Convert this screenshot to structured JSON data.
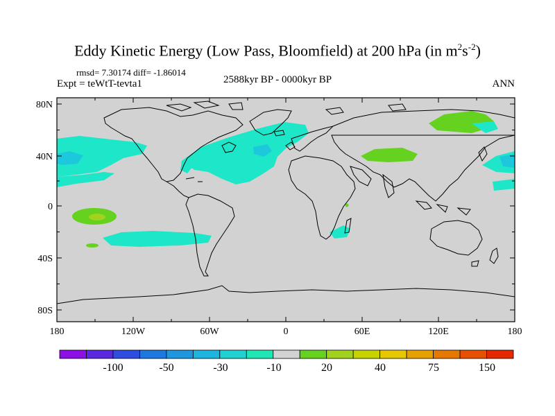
{
  "title": {
    "main": "Eddy Kinetic Energy (Low Pass, Bloomfield) at 200 hPa (in m",
    "exp1": "2",
    "mid": "s",
    "exp2": "-2",
    "end": ")"
  },
  "stats": "rmsd= 7.30174 diff= -1.86014",
  "experiment": "Expt = teWtT-tevta1",
  "period": "2588kyr BP - 0000kyr BP",
  "season": "ANN",
  "lat_ticks": [
    "80N",
    "40N",
    "0",
    "40S",
    "80S"
  ],
  "lon_ticks": [
    "180",
    "120W",
    "60W",
    "0",
    "60E",
    "120E",
    "180"
  ],
  "colorbar": {
    "labels": [
      "-100",
      "-50",
      "-30",
      "-10",
      "20",
      "40",
      "75",
      "150"
    ],
    "colors": [
      "#8c10e6",
      "#5a28e0",
      "#2d4ee0",
      "#1e78e0",
      "#1e96e0",
      "#1eb4e0",
      "#1ed2d2",
      "#1ee6b4",
      "#d2d2d2",
      "#64d21e",
      "#a0d21e",
      "#c8d200",
      "#e6c800",
      "#e6a000",
      "#e67800",
      "#e65000",
      "#e62800"
    ]
  },
  "colors": {
    "land_bg": "#d2d2d2",
    "cyan": "#1ee6c8",
    "cyan_dark": "#1ec8dc",
    "green": "#64d21e",
    "green_light": "#a0d21e",
    "coast": "#000000"
  }
}
